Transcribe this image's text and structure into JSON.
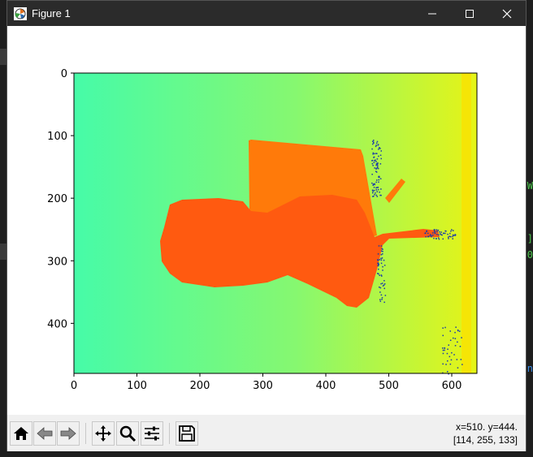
{
  "window": {
    "title": "Figure 1",
    "controls": [
      "minimize",
      "maximize",
      "close"
    ]
  },
  "plot": {
    "x_ticks": [
      "0",
      "100",
      "200",
      "300",
      "400",
      "500",
      "600"
    ],
    "y_ticks": [
      "0",
      "100",
      "200",
      "300",
      "400"
    ],
    "colormap": "jet",
    "colors": {
      "background_left": "#46fba8",
      "background_mid": "#86f870",
      "background_right": "#e6f416",
      "far_edge": "#f5e506",
      "object": "#ff5a10",
      "object_top": "#ff7a0a",
      "noise": "#1a3aa8"
    }
  },
  "toolbar": {
    "buttons": [
      {
        "name": "home-button",
        "icon": "home-icon"
      },
      {
        "name": "back-button",
        "icon": "arrow-left-icon"
      },
      {
        "name": "forward-button",
        "icon": "arrow-right-icon"
      },
      {
        "name": "pan-button",
        "icon": "move-icon"
      },
      {
        "name": "zoom-button",
        "icon": "magnifier-icon"
      },
      {
        "name": "configure-subplots-button",
        "icon": "sliders-icon"
      },
      {
        "name": "save-button",
        "icon": "floppy-disk-icon"
      }
    ],
    "coord_line1": "x=510. y=444.",
    "coord_line2": "[114, 255, 133]"
  },
  "background": {
    "right_edge_chars": [
      "W",
      "]",
      "0",
      "n"
    ]
  }
}
